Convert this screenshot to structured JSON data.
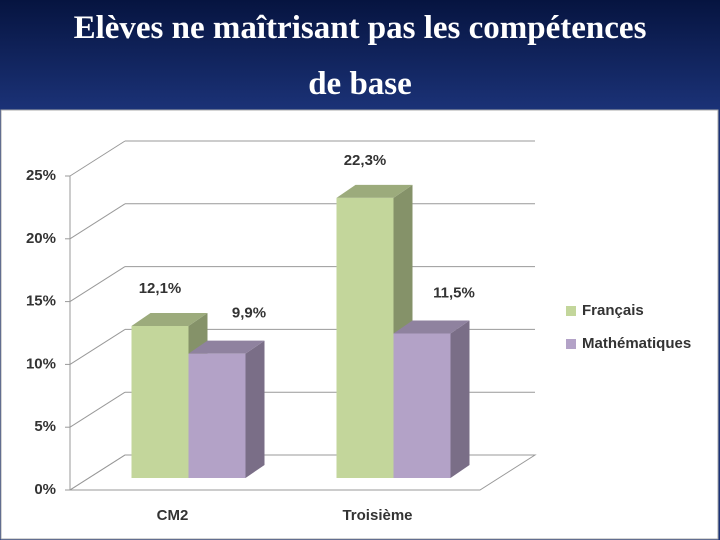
{
  "chart_data": {
    "type": "bar3d",
    "title": "Elèves ne maîtrisant pas les compétences de base",
    "categories": [
      "CM2",
      "Troisième"
    ],
    "series": [
      {
        "name": "Français",
        "color": "#c3d69b",
        "values": [
          12.1,
          22.3
        ],
        "value_labels": [
          "12,1%",
          "22,3%"
        ]
      },
      {
        "name": "Mathématiques",
        "color": "#b3a2c7",
        "values": [
          9.9,
          11.5
        ],
        "value_labels": [
          "9,9%",
          "11,5%"
        ]
      }
    ],
    "ylim": [
      0,
      25
    ],
    "yticks": [
      {
        "value": 0,
        "label": "0%"
      },
      {
        "value": 5,
        "label": "5%"
      },
      {
        "value": 10,
        "label": "10%"
      },
      {
        "value": 15,
        "label": "15%"
      },
      {
        "value": 20,
        "label": "20%"
      },
      {
        "value": 25,
        "label": "25%"
      }
    ],
    "grid": true,
    "legend": "right"
  }
}
